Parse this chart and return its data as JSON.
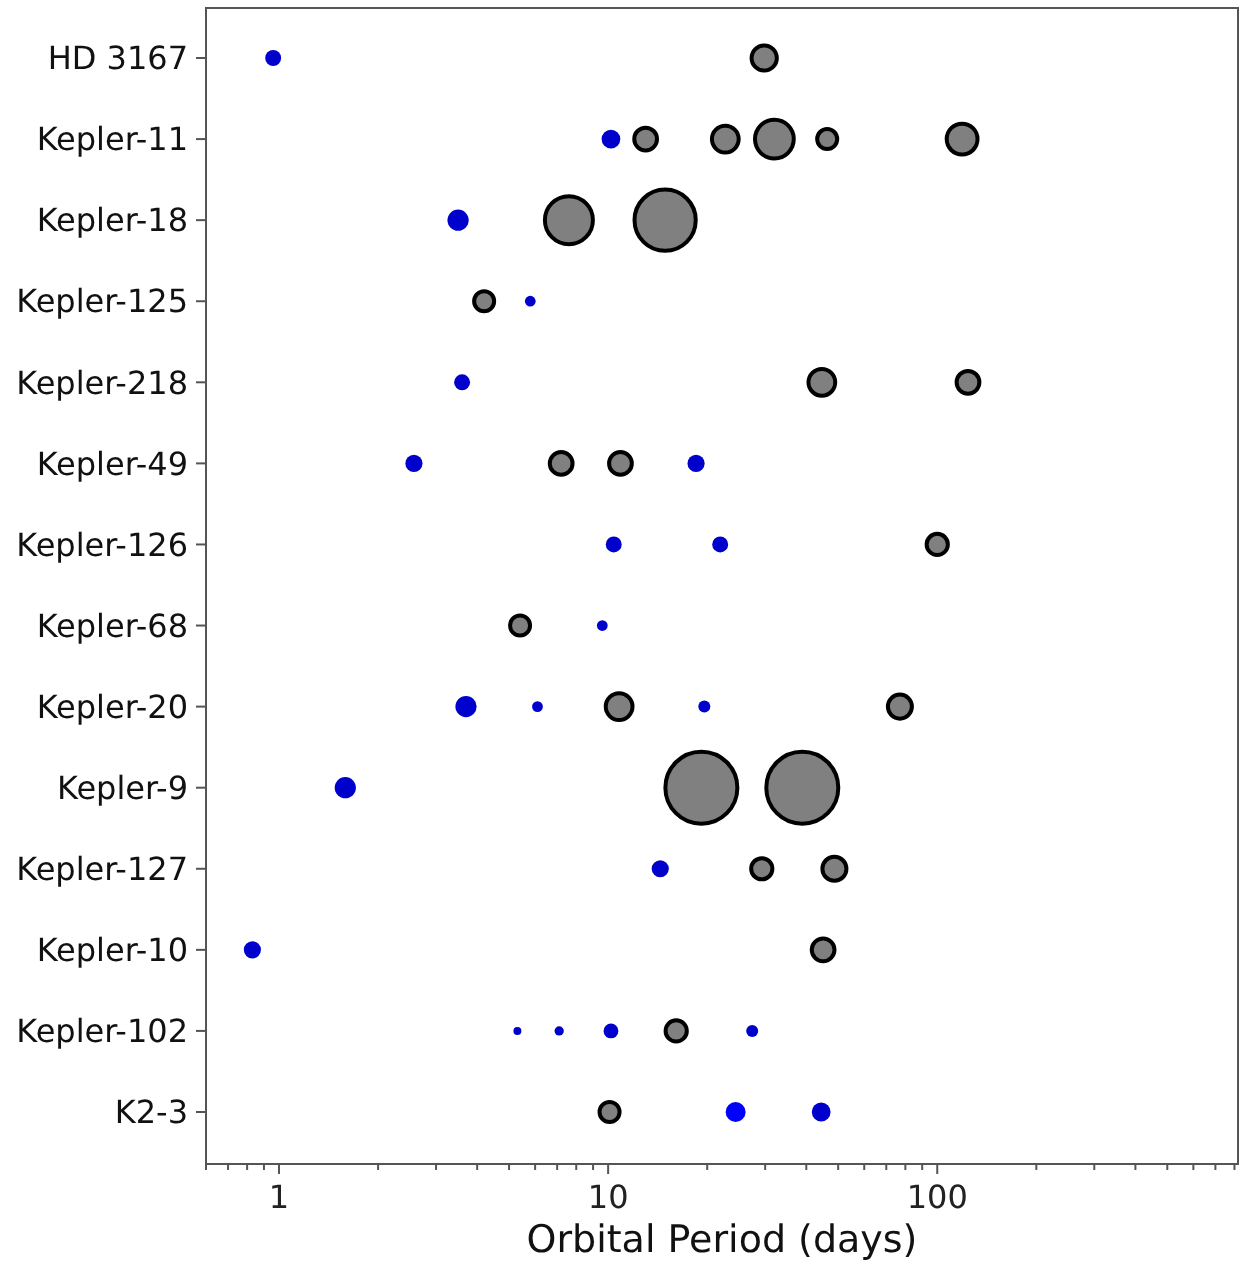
{
  "chart_data": {
    "type": "bubble",
    "orientation": "horizontal",
    "log": "x",
    "xlabel": "Orbital Period (days)",
    "categories": [
      "HD 3167",
      "Kepler-11",
      "Kepler-18",
      "Kepler-125",
      "Kepler-218",
      "Kepler-49",
      "Kepler-126",
      "Kepler-68",
      "Kepler-20",
      "Kepler-9",
      "Kepler-127",
      "Kepler-10",
      "Kepler-102",
      "K2-3"
    ],
    "xlim": [
      0.6,
      820
    ],
    "xticks": [
      {
        "value": 0.6,
        "label": null
      },
      {
        "value": 0.7,
        "label": null
      },
      {
        "value": 0.8,
        "label": null
      },
      {
        "value": 0.9,
        "label": null
      },
      1,
      {
        "value": 2,
        "label": null
      },
      {
        "value": 3,
        "label": null
      },
      {
        "value": 4,
        "label": null
      },
      {
        "value": 5,
        "label": null
      },
      {
        "value": 6,
        "label": null
      },
      {
        "value": 7,
        "label": null
      },
      {
        "value": 8,
        "label": null
      },
      {
        "value": 9,
        "label": null
      },
      10,
      {
        "value": 20,
        "label": null
      },
      {
        "value": 30,
        "label": null
      },
      {
        "value": 40,
        "label": null
      },
      {
        "value": 50,
        "label": null
      },
      {
        "value": 60,
        "label": null
      },
      {
        "value": 70,
        "label": null
      },
      {
        "value": 80,
        "label": null
      },
      {
        "value": 90,
        "label": null
      },
      100,
      {
        "value": 200,
        "label": null
      },
      {
        "value": 300,
        "label": null
      },
      {
        "value": 400,
        "label": null
      },
      {
        "value": 500,
        "label": null
      },
      {
        "value": 600,
        "label": null
      },
      {
        "value": 700,
        "label": null
      },
      {
        "value": 800,
        "label": null
      }
    ],
    "series": [
      {
        "values": [
          0.96,
          10.2,
          3.5,
          4.2,
          3.6,
          2.57,
          10.4,
          5.4,
          3.7,
          1.59,
          14.4,
          0.83,
          5.3,
          10.1
        ],
        "sizes": [
          0.044,
          0.061,
          0.078,
          0.1,
          0.044,
          0.051,
          0.044,
          0.1,
          0.078,
          0.078,
          0.051,
          0.051,
          0.011,
          0.1
        ],
        "colors": [
          "#0000cc",
          "#0000cc",
          "#0000cc",
          "#808080",
          "#0000cc",
          "#0000cc",
          "#0000cc",
          "#808080",
          "#0000cc",
          "#0000cc",
          "#0000cc",
          "#0000cc",
          "#0000cc",
          "#808080"
        ]
      },
      {
        "values": [
          29.8,
          13.0,
          7.6,
          5.8,
          44.6,
          7.2,
          21.9,
          9.6,
          6.1,
          19.2,
          29.3,
          45.0,
          7.1,
          24.4
        ],
        "sizes": [
          0.148,
          0.124,
          0.468,
          0.02,
          0.164,
          0.124,
          0.044,
          0.02,
          0.02,
          1,
          0.11,
          0.124,
          0.015,
          0.069
        ],
        "colors": [
          "#808080",
          "#808080",
          "#808080",
          "#0000cc",
          "#808080",
          "#808080",
          "#0000cc",
          "#0000cc",
          "#0000cc",
          "#808080",
          "#808080",
          "#808080",
          "#0000cc",
          "#0000ff"
        ]
      },
      {
        "values": [
          null,
          22.7,
          14.9,
          null,
          124,
          10.9,
          100,
          null,
          10.8,
          38.9,
          48.7,
          null,
          10.2,
          44.4
        ],
        "sizes": [
          null,
          0.164,
          0.736,
          null,
          0.124,
          0.124,
          0.11,
          null,
          0.164,
          1,
          0.136,
          null,
          0.038,
          0.061
        ],
        "colors": [
          null,
          "#808080",
          "#808080",
          null,
          "#808080",
          "#808080",
          "#808080",
          null,
          "#808080",
          "#808080",
          "#808080",
          null,
          "#0000cc",
          "#0000cc"
        ]
      },
      {
        "values": [
          null,
          32.0,
          null,
          null,
          null,
          18.5,
          null,
          null,
          19.6,
          null,
          null,
          null,
          16.1,
          null
        ],
        "sizes": [
          null,
          0.317,
          null,
          null,
          null,
          0.051,
          null,
          null,
          0.025,
          null,
          null,
          null,
          0.11,
          null
        ],
        "colors": [
          null,
          "#808080",
          null,
          null,
          null,
          "#0000cc",
          null,
          null,
          "#0000cc",
          null,
          null,
          null,
          "#808080",
          null
        ]
      },
      {
        "values": [
          null,
          46.3,
          null,
          null,
          null,
          null,
          null,
          null,
          77,
          null,
          null,
          null,
          27.4,
          null
        ],
        "sizes": [
          null,
          0.1,
          null,
          null,
          null,
          null,
          null,
          null,
          0.136,
          null,
          null,
          null,
          0.025,
          null
        ],
        "colors": [
          null,
          "#808080",
          null,
          null,
          null,
          null,
          null,
          null,
          "#808080",
          null,
          null,
          null,
          "#0000cc",
          null
        ]
      },
      {
        "values": [
          null,
          119,
          null,
          null,
          null,
          null,
          null,
          null,
          null,
          null,
          null,
          null,
          null,
          null
        ],
        "sizes": [
          null,
          0.21,
          null,
          null,
          null,
          null,
          null,
          null,
          null,
          null,
          null,
          null,
          null,
          null
        ],
        "colors": [
          null,
          "#808080",
          null,
          null,
          null,
          null,
          null,
          null,
          null,
          null,
          null,
          null,
          null,
          null
        ]
      }
    ]
  }
}
